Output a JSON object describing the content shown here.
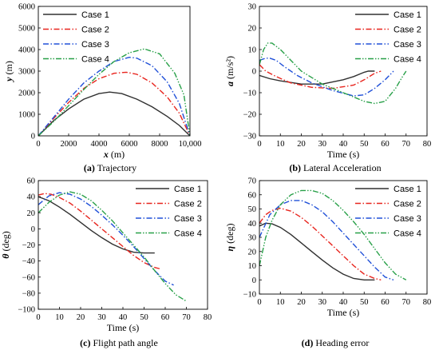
{
  "chart_data": [
    {
      "type": "line",
      "caption_tag": "(a)",
      "caption": "Trajectory",
      "xlabel_sym": "x",
      "xlabel_unit": "(m)",
      "ylabel_sym": "y",
      "ylabel_unit": "(m)",
      "xlim": [
        0,
        10000
      ],
      "ylim": [
        0,
        6000
      ],
      "xticks": [
        0,
        2000,
        4000,
        6000,
        8000,
        10000
      ],
      "xtick_labels": [
        "0",
        "2000",
        "4000",
        "6000",
        "8000",
        "10,000"
      ],
      "yticks": [
        0,
        1000,
        2000,
        3000,
        4000,
        5000,
        6000
      ],
      "ytick_labels": [
        "0",
        "1000",
        "2000",
        "3000",
        "4000",
        "5000",
        "6000"
      ],
      "legend_position": "top-left",
      "series": [
        {
          "name": "Case 1",
          "x": [
            0,
            1000,
            2000,
            3000,
            4000,
            4700,
            5500,
            6500,
            7500,
            8500,
            9300,
            10000
          ],
          "y": [
            0,
            700,
            1250,
            1700,
            1960,
            2030,
            1960,
            1700,
            1350,
            900,
            480,
            0
          ]
        },
        {
          "name": "Case 2",
          "x": [
            0,
            1000,
            2000,
            3000,
            4000,
            5000,
            5800,
            6500,
            7500,
            8500,
            9300,
            10000
          ],
          "y": [
            0,
            800,
            1550,
            2200,
            2650,
            2900,
            2950,
            2850,
            2450,
            1800,
            1050,
            0
          ]
        },
        {
          "name": "Case 3",
          "x": [
            0,
            1000,
            2000,
            3000,
            4000,
            5000,
            6000,
            6500,
            7500,
            8500,
            9300,
            10000
          ],
          "y": [
            0,
            850,
            1700,
            2450,
            3000,
            3450,
            3640,
            3600,
            3250,
            2500,
            1500,
            0
          ]
        },
        {
          "name": "Case 4",
          "x": [
            0,
            1000,
            2000,
            3000,
            4000,
            5000,
            6000,
            7000,
            8000,
            9000,
            9600,
            10000
          ],
          "y": [
            0,
            650,
            1400,
            2150,
            2850,
            3450,
            3850,
            4030,
            3800,
            2900,
            1900,
            0
          ]
        }
      ]
    },
    {
      "type": "line",
      "caption_tag": "(b)",
      "caption": "Lateral Acceleration",
      "xlabel_sym": "",
      "xlabel_unit": "Time (s)",
      "ylabel_sym": "a",
      "ylabel_unit": "(m/s²)",
      "xlim": [
        0,
        80
      ],
      "ylim": [
        -30,
        30
      ],
      "xticks": [
        0,
        10,
        20,
        30,
        40,
        50,
        60,
        70,
        80
      ],
      "xtick_labels": [
        "0",
        "10",
        "20",
        "30",
        "40",
        "50",
        "60",
        "70",
        "80"
      ],
      "yticks": [
        -30,
        -20,
        -10,
        0,
        10,
        20,
        30
      ],
      "ytick_labels": [
        "−30",
        "−20",
        "−10",
        "0",
        "10",
        "20",
        "30"
      ],
      "legend_position": "top-right",
      "series": [
        {
          "name": "Case 1",
          "x": [
            0,
            5,
            10,
            20,
            30,
            40,
            45,
            50,
            52,
            55
          ],
          "y": [
            -2,
            -3.5,
            -4.5,
            -6,
            -6,
            -4,
            -2.5,
            -0.5,
            0,
            0
          ]
        },
        {
          "name": "Case 2",
          "x": [
            0,
            3,
            8,
            15,
            25,
            35,
            45,
            50,
            55,
            58
          ],
          "y": [
            3,
            0,
            -2.5,
            -5.5,
            -7.5,
            -8,
            -6.5,
            -4,
            -1,
            0
          ]
        },
        {
          "name": "Case 3",
          "x": [
            0,
            3,
            5,
            8,
            12,
            18,
            25,
            35,
            45,
            50,
            55,
            60,
            64
          ],
          "y": [
            5,
            6,
            6,
            5,
            2,
            -2,
            -5.5,
            -9,
            -11.5,
            -11,
            -8,
            -4,
            0
          ]
        },
        {
          "name": "Case 4",
          "x": [
            0,
            2,
            4,
            6,
            10,
            15,
            20,
            30,
            40,
            50,
            55,
            60,
            65,
            68,
            70
          ],
          "y": [
            3,
            10,
            13,
            13,
            10,
            5,
            0,
            -6,
            -10,
            -14,
            -15,
            -14,
            -8,
            -3,
            0
          ]
        }
      ]
    },
    {
      "type": "line",
      "caption_tag": "(c)",
      "caption": "Flight path angle",
      "xlabel_sym": "",
      "xlabel_unit": "Time (s)",
      "ylabel_sym": "θ",
      "ylabel_unit": "(deg)",
      "xlim": [
        0,
        80
      ],
      "ylim": [
        -100,
        60
      ],
      "xticks": [
        0,
        10,
        20,
        30,
        40,
        50,
        60,
        70,
        80
      ],
      "xtick_labels": [
        "0",
        "10",
        "20",
        "30",
        "40",
        "50",
        "60",
        "70",
        "80"
      ],
      "yticks": [
        -100,
        -80,
        -60,
        -40,
        -20,
        0,
        20,
        40,
        60
      ],
      "ytick_labels": [
        "−100",
        "−80",
        "−60",
        "−40",
        "−20",
        "0",
        "20",
        "40",
        "60"
      ],
      "legend_position": "top-right",
      "series": [
        {
          "name": "Case 1",
          "x": [
            0,
            5,
            10,
            15,
            20,
            25,
            30,
            35,
            40,
            45,
            50,
            55
          ],
          "y": [
            40,
            35,
            27,
            18,
            8,
            -2,
            -11,
            -19,
            -25,
            -29,
            -30,
            -30
          ]
        },
        {
          "name": "Case 2",
          "x": [
            0,
            3,
            6,
            10,
            15,
            20,
            25,
            30,
            35,
            40,
            45,
            50,
            55,
            58
          ],
          "y": [
            42,
            44,
            43,
            39,
            32,
            22,
            11,
            0,
            -11,
            -22,
            -33,
            -42,
            -48,
            -50
          ]
        },
        {
          "name": "Case 3",
          "x": [
            0,
            5,
            10,
            15,
            20,
            25,
            30,
            35,
            40,
            45,
            50,
            55,
            60,
            64
          ],
          "y": [
            30,
            41,
            45,
            43,
            37,
            28,
            17,
            5,
            -8,
            -22,
            -37,
            -52,
            -65,
            -70
          ]
        },
        {
          "name": "Case 4",
          "x": [
            0,
            5,
            10,
            15,
            20,
            25,
            30,
            35,
            40,
            45,
            50,
            55,
            60,
            65,
            70
          ],
          "y": [
            20,
            33,
            42,
            46,
            43,
            35,
            23,
            10,
            -5,
            -20,
            -35,
            -52,
            -68,
            -82,
            -90
          ]
        }
      ]
    },
    {
      "type": "line",
      "caption_tag": "(d)",
      "caption": "Heading error",
      "xlabel_sym": "",
      "xlabel_unit": "Time (s)",
      "ylabel_sym": "η",
      "ylabel_unit": "(deg)",
      "xlim": [
        0,
        80
      ],
      "ylim": [
        -10,
        70
      ],
      "xticks": [
        0,
        10,
        20,
        30,
        40,
        50,
        60,
        70,
        80
      ],
      "xtick_labels": [
        "0",
        "10",
        "20",
        "30",
        "40",
        "50",
        "60",
        "70",
        "80"
      ],
      "yticks": [
        -10,
        0,
        10,
        20,
        30,
        40,
        50,
        60,
        70
      ],
      "ytick_labels": [
        "−10",
        "0",
        "10",
        "20",
        "30",
        "40",
        "50",
        "60",
        "70"
      ],
      "legend_position": "top-right",
      "series": [
        {
          "name": "Case 1",
          "x": [
            0,
            3,
            6,
            10,
            15,
            20,
            25,
            30,
            35,
            40,
            45,
            50,
            55
          ],
          "y": [
            38,
            40,
            39.5,
            37,
            32,
            26,
            20,
            14,
            8.5,
            4,
            1,
            0,
            0
          ]
        },
        {
          "name": "Case 2",
          "x": [
            0,
            3,
            6,
            10,
            15,
            20,
            25,
            30,
            35,
            40,
            45,
            50,
            55,
            58
          ],
          "y": [
            40,
            46,
            49,
            50.5,
            48.5,
            44,
            38,
            31,
            24,
            17,
            10,
            4,
            1,
            0
          ]
        },
        {
          "name": "Case 3",
          "x": [
            0,
            5,
            10,
            15,
            20,
            25,
            30,
            35,
            40,
            45,
            50,
            55,
            60,
            64
          ],
          "y": [
            30,
            46,
            53,
            56,
            56,
            53,
            48,
            41,
            33,
            25,
            17,
            9,
            2,
            0
          ]
        },
        {
          "name": "Case 4",
          "x": [
            0,
            3,
            6,
            10,
            15,
            20,
            25,
            30,
            35,
            40,
            45,
            50,
            55,
            60,
            65,
            70
          ],
          "y": [
            10,
            30,
            42,
            53,
            60,
            63,
            63,
            61,
            56,
            49,
            41,
            32,
            22,
            12,
            4,
            0
          ]
        }
      ]
    }
  ],
  "style": {
    "series_colors": [
      "#303030",
      "#e8251e",
      "#2050d8",
      "#28a048"
    ],
    "series_dash": [
      "solid",
      "dash-dot",
      "dash-dot",
      "dash-dot-dot"
    ]
  }
}
